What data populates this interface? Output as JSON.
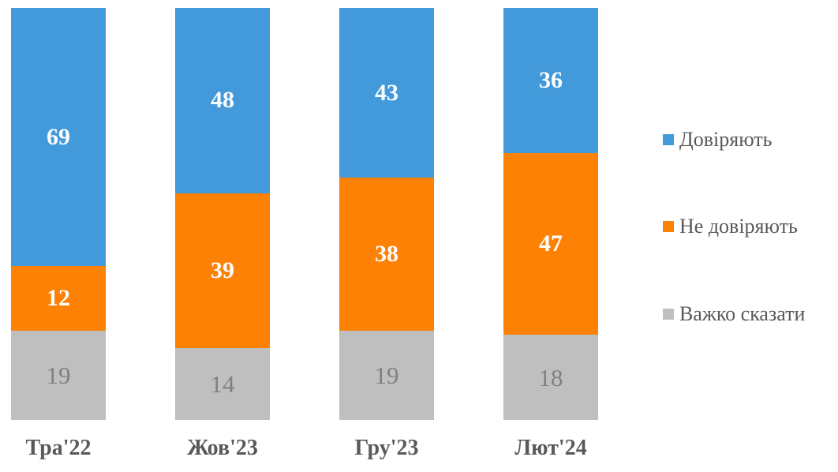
{
  "chart_data": {
    "type": "bar",
    "variant": "stacked-percentage-columns",
    "title": "",
    "categories": [
      "Тра'22",
      "Жов'23",
      "Гру'23",
      "Лют'24"
    ],
    "series": [
      {
        "name": "Довіряють",
        "values": [
          69,
          48,
          43,
          36
        ],
        "color": "#429ADB",
        "label_color": "#FFFFFF"
      },
      {
        "name": "Не довіряють",
        "values": [
          12,
          39,
          38,
          47
        ],
        "color": "#FC8105",
        "label_color": "#FFFFFF"
      },
      {
        "name": "Важко сказати",
        "values": [
          19,
          14,
          19,
          18
        ],
        "color": "#BFBFBF",
        "label_color": "#808080"
      }
    ],
    "legend_position": "right",
    "grid": false,
    "xlabel": "",
    "ylabel": "",
    "axis_label_color": "#595959",
    "background": "#FFFFFF"
  }
}
